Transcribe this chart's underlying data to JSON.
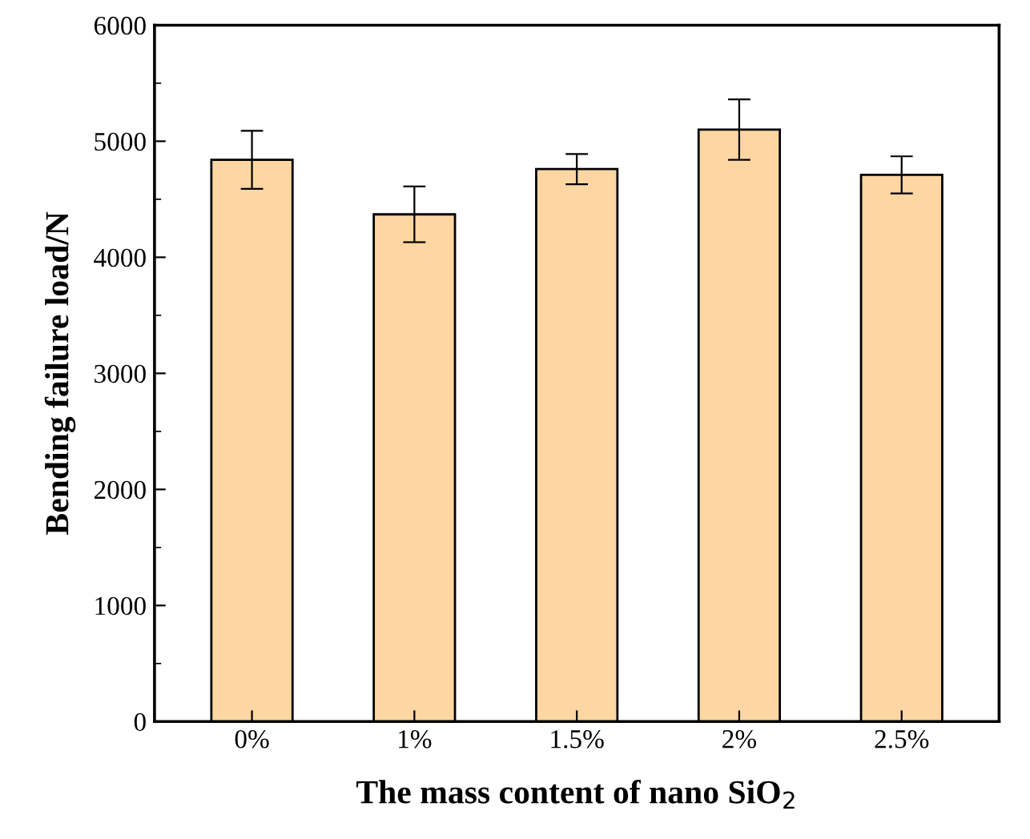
{
  "chart_data": {
    "type": "bar",
    "xlabel": "The mass content of nano SiO$_{2}$",
    "ylabel": "Bending failure load/N",
    "categories": [
      "0%",
      "1%",
      "1.5%",
      "2%",
      "2.5%"
    ],
    "values": [
      4840,
      4370,
      4760,
      5100,
      4710
    ],
    "errors": [
      250,
      240,
      130,
      260,
      160
    ],
    "color": "#fdd6a2",
    "ylim": [
      0,
      6000
    ],
    "yticks": [
      0,
      1000,
      2000,
      3000,
      4000,
      5000,
      6000
    ],
    "grid": false
  }
}
